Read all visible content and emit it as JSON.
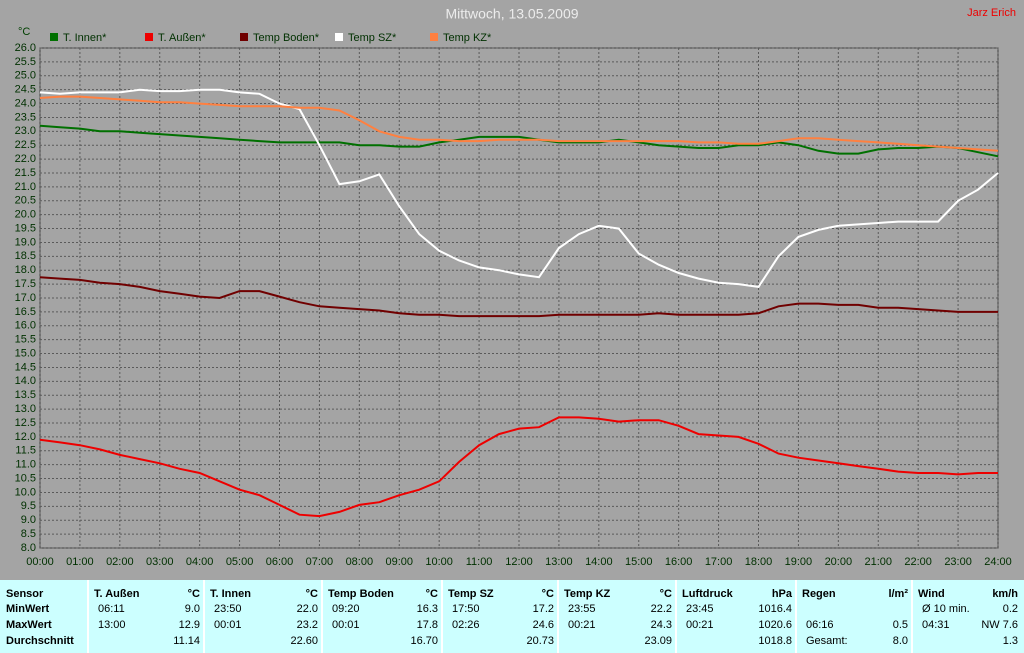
{
  "chart_data": {
    "type": "line",
    "title": "Mittwoch, 13.05.2009",
    "author": "Jarz Erich",
    "y_unit": "°C",
    "xlim": [
      0,
      24
    ],
    "ylim": [
      8,
      26
    ],
    "grid": true,
    "x": [
      0,
      0.5,
      1,
      1.5,
      2,
      2.5,
      3,
      3.5,
      4,
      4.5,
      5,
      5.5,
      6,
      6.5,
      7,
      7.5,
      8,
      8.5,
      9,
      9.5,
      10,
      10.5,
      11,
      11.5,
      12,
      12.5,
      13,
      13.5,
      14,
      14.5,
      15,
      15.5,
      16,
      16.5,
      17,
      17.5,
      18,
      18.5,
      19,
      19.5,
      20,
      20.5,
      21,
      21.5,
      22,
      22.5,
      23,
      23.5,
      24
    ],
    "xticks": [
      {
        "value": 0,
        "label": "00:00"
      },
      {
        "value": 1,
        "label": "01:00"
      },
      {
        "value": 2,
        "label": "02:00"
      },
      {
        "value": 3,
        "label": "03:00"
      },
      {
        "value": 4,
        "label": "04:00"
      },
      {
        "value": 5,
        "label": "05:00"
      },
      {
        "value": 6,
        "label": "06:00"
      },
      {
        "value": 7,
        "label": "07:00"
      },
      {
        "value": 8,
        "label": "08:00"
      },
      {
        "value": 9,
        "label": "09:00"
      },
      {
        "value": 10,
        "label": "10:00"
      },
      {
        "value": 11,
        "label": "11:00"
      },
      {
        "value": 12,
        "label": "12:00"
      },
      {
        "value": 13,
        "label": "13:00"
      },
      {
        "value": 14,
        "label": "14:00"
      },
      {
        "value": 15,
        "label": "15:00"
      },
      {
        "value": 16,
        "label": "16:00"
      },
      {
        "value": 17,
        "label": "17:00"
      },
      {
        "value": 18,
        "label": "18:00"
      },
      {
        "value": 19,
        "label": "19:00"
      },
      {
        "value": 20,
        "label": "20:00"
      },
      {
        "value": 21,
        "label": "21:00"
      },
      {
        "value": 22,
        "label": "22:00"
      },
      {
        "value": 23,
        "label": "23:00"
      },
      {
        "value": 24,
        "label": "24:00"
      }
    ],
    "yticks": [
      {
        "value": 8,
        "label": "8.0"
      },
      {
        "value": 8.5,
        "label": "8.5"
      },
      {
        "value": 9,
        "label": "9.0"
      },
      {
        "value": 9.5,
        "label": "9.5"
      },
      {
        "value": 10,
        "label": "10.0"
      },
      {
        "value": 10.5,
        "label": "10.5"
      },
      {
        "value": 11,
        "label": "11.0"
      },
      {
        "value": 11.5,
        "label": "11.5"
      },
      {
        "value": 12,
        "label": "12.0"
      },
      {
        "value": 12.5,
        "label": "12.5"
      },
      {
        "value": 13,
        "label": "13.0"
      },
      {
        "value": 13.5,
        "label": "13.5"
      },
      {
        "value": 14,
        "label": "14.0"
      },
      {
        "value": 14.5,
        "label": "14.5"
      },
      {
        "value": 15,
        "label": "15.0"
      },
      {
        "value": 15.5,
        "label": "15.5"
      },
      {
        "value": 16,
        "label": "16.0"
      },
      {
        "value": 16.5,
        "label": "16.5"
      },
      {
        "value": 17,
        "label": "17.0"
      },
      {
        "value": 17.5,
        "label": "17.5"
      },
      {
        "value": 18,
        "label": "18.0"
      },
      {
        "value": 18.5,
        "label": "18.5"
      },
      {
        "value": 19,
        "label": "19.0"
      },
      {
        "value": 19.5,
        "label": "19.5"
      },
      {
        "value": 20,
        "label": "20.0"
      },
      {
        "value": 20.5,
        "label": "20.5"
      },
      {
        "value": 21,
        "label": "21.0"
      },
      {
        "value": 21.5,
        "label": "21.5"
      },
      {
        "value": 22,
        "label": "22.0"
      },
      {
        "value": 22.5,
        "label": "22.5"
      },
      {
        "value": 23,
        "label": "23.0"
      },
      {
        "value": 23.5,
        "label": "23.5"
      },
      {
        "value": 24,
        "label": "24.0"
      },
      {
        "value": 24.5,
        "label": "24.5"
      },
      {
        "value": 25,
        "label": "25.0"
      },
      {
        "value": 25.5,
        "label": "25.5"
      },
      {
        "value": 26,
        "label": "26.0"
      }
    ],
    "series": [
      {
        "name": "T. Innen*",
        "color": "#007000",
        "values": [
          23.2,
          23.15,
          23.1,
          23.0,
          23.0,
          22.95,
          22.9,
          22.85,
          22.8,
          22.75,
          22.7,
          22.65,
          22.6,
          22.6,
          22.6,
          22.6,
          22.5,
          22.5,
          22.45,
          22.45,
          22.6,
          22.7,
          22.8,
          22.8,
          22.8,
          22.7,
          22.6,
          22.6,
          22.6,
          22.7,
          22.6,
          22.5,
          22.45,
          22.4,
          22.4,
          22.5,
          22.5,
          22.6,
          22.5,
          22.3,
          22.2,
          22.2,
          22.35,
          22.4,
          22.4,
          22.45,
          22.4,
          22.25,
          22.1
        ]
      },
      {
        "name": "T. Außen*",
        "color": "#ee0000",
        "values": [
          11.9,
          11.8,
          11.7,
          11.55,
          11.35,
          11.2,
          11.05,
          10.85,
          10.7,
          10.4,
          10.1,
          9.9,
          9.55,
          9.2,
          9.15,
          9.3,
          9.55,
          9.65,
          9.9,
          10.1,
          10.4,
          11.1,
          11.7,
          12.1,
          12.3,
          12.35,
          12.7,
          12.7,
          12.65,
          12.55,
          12.6,
          12.6,
          12.4,
          12.1,
          12.05,
          12.0,
          11.75,
          11.4,
          11.25,
          11.15,
          11.05,
          10.95,
          10.85,
          10.75,
          10.7,
          10.7,
          10.65,
          10.7,
          10.7
        ]
      },
      {
        "name": "Temp Boden*",
        "color": "#700000",
        "values": [
          17.75,
          17.7,
          17.65,
          17.55,
          17.5,
          17.4,
          17.25,
          17.15,
          17.05,
          17.0,
          17.25,
          17.25,
          17.05,
          16.85,
          16.7,
          16.65,
          16.6,
          16.55,
          16.45,
          16.4,
          16.4,
          16.35,
          16.35,
          16.35,
          16.35,
          16.35,
          16.4,
          16.4,
          16.4,
          16.4,
          16.4,
          16.45,
          16.4,
          16.4,
          16.4,
          16.4,
          16.45,
          16.7,
          16.8,
          16.8,
          16.75,
          16.75,
          16.65,
          16.65,
          16.6,
          16.55,
          16.5,
          16.5,
          16.5
        ]
      },
      {
        "name": "Temp SZ*",
        "color": "#ffffff",
        "values": [
          24.4,
          24.35,
          24.4,
          24.4,
          24.4,
          24.5,
          24.45,
          24.45,
          24.5,
          24.5,
          24.4,
          24.35,
          24.0,
          23.8,
          22.5,
          21.1,
          21.2,
          21.45,
          20.3,
          19.3,
          18.7,
          18.35,
          18.1,
          18.0,
          17.85,
          17.75,
          18.8,
          19.3,
          19.6,
          19.5,
          18.6,
          18.2,
          17.9,
          17.7,
          17.55,
          17.5,
          17.4,
          18.5,
          19.2,
          19.45,
          19.6,
          19.65,
          19.7,
          19.75,
          19.75,
          19.75,
          20.5,
          20.9,
          21.5
        ]
      },
      {
        "name": "Temp KZ*",
        "color": "#ff8040",
        "values": [
          24.2,
          24.25,
          24.25,
          24.2,
          24.15,
          24.1,
          24.05,
          24.05,
          24.0,
          23.95,
          23.9,
          23.9,
          23.9,
          23.85,
          23.85,
          23.75,
          23.4,
          23.0,
          22.8,
          22.7,
          22.7,
          22.65,
          22.65,
          22.7,
          22.7,
          22.7,
          22.65,
          22.65,
          22.65,
          22.65,
          22.65,
          22.65,
          22.65,
          22.6,
          22.6,
          22.55,
          22.55,
          22.65,
          22.75,
          22.75,
          22.7,
          22.65,
          22.6,
          22.55,
          22.5,
          22.45,
          22.4,
          22.35,
          22.3
        ]
      }
    ]
  },
  "table": {
    "corner": "Sensor",
    "columns": [
      {
        "name": "T. Außen",
        "unit": "°C"
      },
      {
        "name": "T. Innen",
        "unit": "°C"
      },
      {
        "name": "Temp Boden",
        "unit": "°C"
      },
      {
        "name": "Temp SZ",
        "unit": "°C"
      },
      {
        "name": "Temp KZ",
        "unit": "°C"
      },
      {
        "name": "Luftdruck",
        "unit": "hPa"
      },
      {
        "name": "Regen",
        "unit": "l/m²"
      },
      {
        "name": "Wind",
        "unit": "km/h"
      }
    ],
    "rows": [
      {
        "label": "MinWert",
        "cells": [
          [
            "06:11",
            "9.0"
          ],
          [
            "23:50",
            "22.0"
          ],
          [
            "09:20",
            "16.3"
          ],
          [
            "17:50",
            "17.2"
          ],
          [
            "23:55",
            "22.2"
          ],
          [
            "23:45",
            "1016.4"
          ],
          [
            null,
            null
          ],
          [
            "Ø 10 min.",
            "0.2"
          ]
        ]
      },
      {
        "label": "MaxWert",
        "cells": [
          [
            "13:00",
            "12.9"
          ],
          [
            "00:01",
            "23.2"
          ],
          [
            "00:01",
            "17.8"
          ],
          [
            "02:26",
            "24.6"
          ],
          [
            "00:21",
            "24.3"
          ],
          [
            "00:21",
            "1020.6"
          ],
          [
            "06:16",
            "0.5"
          ],
          [
            "04:31",
            "NW 7.6"
          ]
        ]
      },
      {
        "label": "Durchschnitt",
        "cells": [
          [
            null,
            "11.14"
          ],
          [
            null,
            "22.60"
          ],
          [
            null,
            "16.70"
          ],
          [
            null,
            "20.73"
          ],
          [
            null,
            "23.09"
          ],
          [
            null,
            "1018.8"
          ],
          [
            "Gesamt:",
            "8.0"
          ],
          [
            null,
            "1.3"
          ]
        ]
      }
    ]
  }
}
